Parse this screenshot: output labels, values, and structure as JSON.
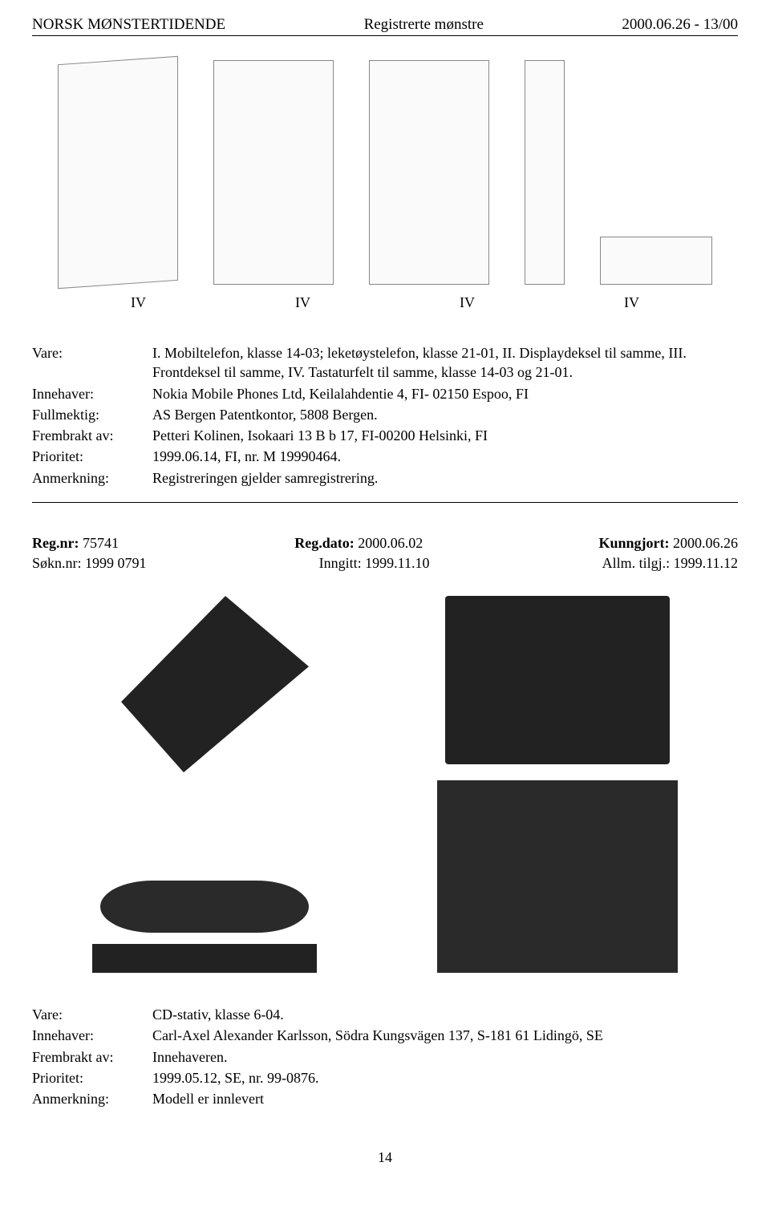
{
  "header": {
    "left": "NORSK MØNSTERTIDENDE",
    "center": "Registrerte mønstre",
    "right": "2000.06.26 - 13/00"
  },
  "figures": {
    "labels": [
      "IV",
      "IV",
      "IV",
      "IV"
    ]
  },
  "entry1": {
    "fields": [
      {
        "label": "Vare:",
        "value": "I. Mobiltelefon, klasse 14-03; leketøystelefon, klasse 21-01, II. Displaydeksel til samme, III. Frontdeksel til samme, IV. Tastaturfelt til samme, klasse 14-03 og 21-01."
      },
      {
        "label": "Innehaver:",
        "value": "Nokia Mobile Phones Ltd, Keilalahdentie 4, FI- 02150 Espoo, FI"
      },
      {
        "label": "Fullmektig:",
        "value": "AS Bergen Patentkontor, 5808 Bergen."
      },
      {
        "label": "Frembrakt av:",
        "value": "Petteri Kolinen, Isokaari 13 B b 17, FI-00200 Helsinki, FI"
      },
      {
        "label": "Prioritet:",
        "value": "1999.06.14, FI, nr. M 19990464."
      },
      {
        "label": "Anmerkning:",
        "value": "Registreringen gjelder samregistrering."
      }
    ]
  },
  "entry2": {
    "meta": {
      "regnr_label": "Reg.nr: ",
      "regnr": "75741",
      "regdato_label": "Reg.dato: ",
      "regdato": "2000.06.02",
      "kunngjort_label": "Kunngjort: ",
      "kunngjort": "2000.06.26",
      "sokn_label": "Søkn.nr: ",
      "sokn": "1999 0791",
      "inngitt_label": "Inngitt: ",
      "inngitt": "1999.11.10",
      "allm_label": "Allm. tilgj.: ",
      "allm": "1999.11.12"
    },
    "fields": [
      {
        "label": "Vare:",
        "value": "CD-stativ, klasse 6-04."
      },
      {
        "label": "Innehaver:",
        "value": "Carl-Axel Alexander Karlsson, Södra Kungsvägen 137, S-181 61 Lidingö, SE"
      },
      {
        "label": "Frembrakt av:",
        "value": "Innehaveren."
      },
      {
        "label": "Prioritet:",
        "value": "1999.05.12, SE, nr. 99-0876."
      },
      {
        "label": "Anmerkning:",
        "value": "Modell er innlevert"
      }
    ]
  },
  "page_number": "14"
}
